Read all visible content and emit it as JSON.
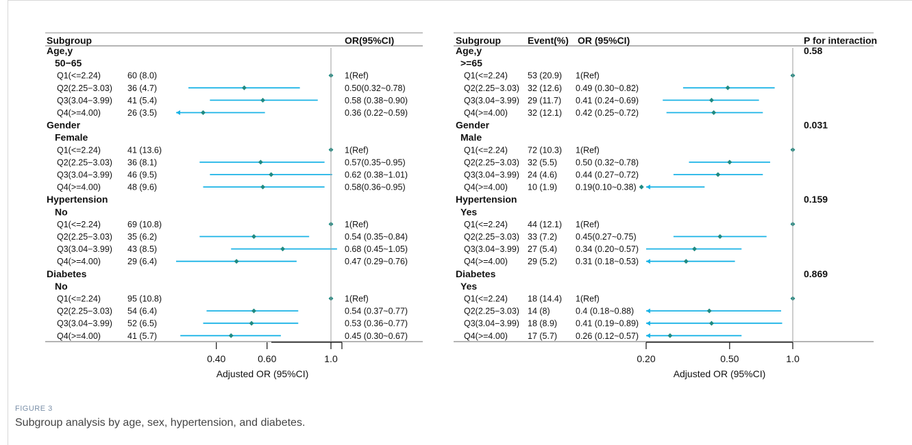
{
  "colors": {
    "ci_line": "#1ab3e6",
    "point": "#1f8a82",
    "ref_line": "#9e9e9e",
    "rule": "#888888"
  },
  "caption": {
    "label": "FIGURE 3",
    "text": "Subgroup analysis by age, sex, hypertension, and diabetes."
  },
  "chart_data": [
    {
      "type": "forest",
      "columns": [
        "Subgroup",
        "",
        "OR(95%CI)"
      ],
      "xlabel": "Adjusted OR (95%CI)",
      "xticks": [
        0.4,
        0.6,
        1.0
      ],
      "xtick_labels": [
        "0.40",
        "0.60",
        "1.0"
      ],
      "xlim": [
        0.29,
        1.12
      ],
      "reference": 1.0,
      "groups": [
        {
          "name": "Age,y",
          "level": "50−65",
          "rows": [
            {
              "quartile": "Q1(<=2.24)",
              "event": "60 (8.0)",
              "or_text": "1(Ref)",
              "or": 1.0,
              "lo": null,
              "hi": null
            },
            {
              "quartile": "Q2(2.25−3.03)",
              "event": "36 (4.7)",
              "or_text": "0.50(0.32~0.78)",
              "or": 0.5,
              "lo": 0.32,
              "hi": 0.78
            },
            {
              "quartile": "Q3(3.04−3.99)",
              "event": "41 (5.4)",
              "or_text": "0.58 (0.38~0.90)",
              "or": 0.58,
              "lo": 0.38,
              "hi": 0.9
            },
            {
              "quartile": "Q4(>=4.00)",
              "event": "26 (3.5)",
              "or_text": "0.36 (0.22~0.59)",
              "or": 0.36,
              "lo": 0.22,
              "hi": 0.59
            }
          ]
        },
        {
          "name": "Gender",
          "level": "Female",
          "rows": [
            {
              "quartile": "Q1(<=2.24)",
              "event": "41 (13.6)",
              "or_text": "1(Ref)",
              "or": 1.0,
              "lo": null,
              "hi": null
            },
            {
              "quartile": "Q2(2.25−3.03)",
              "event": "36 (8.1)",
              "or_text": "0.57(0.35~0.95)",
              "or": 0.57,
              "lo": 0.35,
              "hi": 0.95
            },
            {
              "quartile": "Q3(3.04−3.99)",
              "event": "46 (9.5)",
              "or_text": "0.62 (0.38~1.01)",
              "or": 0.62,
              "lo": 0.38,
              "hi": 1.01
            },
            {
              "quartile": "Q4(>=4.00)",
              "event": "48 (9.6)",
              "or_text": "0.58(0.36~0.95)",
              "or": 0.58,
              "lo": 0.36,
              "hi": 0.95
            }
          ]
        },
        {
          "name": "Hypertension",
          "level": "No",
          "rows": [
            {
              "quartile": "Q1(<=2.24)",
              "event": "69 (10.8)",
              "or_text": "1(Ref)",
              "or": 1.0,
              "lo": null,
              "hi": null
            },
            {
              "quartile": "Q2(2.25−3.03)",
              "event": "35 (6.2)",
              "or_text": "0.54 (0.35~0.84)",
              "or": 0.54,
              "lo": 0.35,
              "hi": 0.84
            },
            {
              "quartile": "Q3(3.04−3.99)",
              "event": "43 (8.5)",
              "or_text": "0.68 (0.45~1.05)",
              "or": 0.68,
              "lo": 0.45,
              "hi": 1.05
            },
            {
              "quartile": "Q4(>=4.00)",
              "event": "29 (6.4)",
              "or_text": "0.47 (0.29~0.76)",
              "or": 0.47,
              "lo": 0.29,
              "hi": 0.76
            }
          ]
        },
        {
          "name": "Diabetes",
          "level": "No",
          "rows": [
            {
              "quartile": "Q1(<=2.24)",
              "event": "95 (10.8)",
              "or_text": "1(Ref)",
              "or": 1.0,
              "lo": null,
              "hi": null
            },
            {
              "quartile": "Q2(2.25−3.03)",
              "event": "54 (6.4)",
              "or_text": "0.54 (0.37~0.77)",
              "or": 0.54,
              "lo": 0.37,
              "hi": 0.77
            },
            {
              "quartile": "Q3(3.04−3.99)",
              "event": "52 (6.5)",
              "or_text": "0.53 (0.36~0.77)",
              "or": 0.53,
              "lo": 0.36,
              "hi": 0.77
            },
            {
              "quartile": "Q4(>=4.00)",
              "event": "41 (5.7)",
              "or_text": "0.45 (0.30~0.67)",
              "or": 0.45,
              "lo": 0.3,
              "hi": 0.67
            }
          ]
        }
      ]
    },
    {
      "type": "forest",
      "columns": [
        "Subgroup",
        "Event(%)",
        "OR (95%CI)",
        "P for interaction"
      ],
      "xlabel": "Adjusted OR (95%CI)",
      "xticks": [
        0.2,
        0.5,
        1.0
      ],
      "xtick_labels": [
        "0.20",
        "0.50",
        "1.0"
      ],
      "xlim": [
        0.2,
        1.0
      ],
      "reference": 1.0,
      "groups": [
        {
          "name": "Age,y",
          "level": ">=65",
          "p_interaction": "0.58",
          "rows": [
            {
              "quartile": "Q1(<=2.24)",
              "event": "53 (20.9)",
              "or_text": "1(Ref)",
              "or": 1.0,
              "lo": null,
              "hi": null
            },
            {
              "quartile": "Q2(2.25−3.03)",
              "event": "32 (12.6)",
              "or_text": "0.49 (0.30~0.82)",
              "or": 0.49,
              "lo": 0.3,
              "hi": 0.82
            },
            {
              "quartile": "Q3(3.04−3.99)",
              "event": "29 (11.7)",
              "or_text": "0.41 (0.24~0.69)",
              "or": 0.41,
              "lo": 0.24,
              "hi": 0.69
            },
            {
              "quartile": "Q4(>=4.00)",
              "event": "32 (12.1)",
              "or_text": "0.42 (0.25~0.72)",
              "or": 0.42,
              "lo": 0.25,
              "hi": 0.72
            }
          ]
        },
        {
          "name": "Gender",
          "level": "Male",
          "p_interaction": "0.031",
          "rows": [
            {
              "quartile": "Q1(<=2.24)",
              "event": "72 (10.3)",
              "or_text": "1(Ref)",
              "or": 1.0,
              "lo": null,
              "hi": null
            },
            {
              "quartile": "Q2(2.25−3.03)",
              "event": "32 (5.5)",
              "or_text": "0.50 (0.32~0.78)",
              "or": 0.5,
              "lo": 0.32,
              "hi": 0.78
            },
            {
              "quartile": "Q3(3.04−3.99)",
              "event": "24 (4.6)",
              "or_text": "0.44 (0.27~0.72)",
              "or": 0.44,
              "lo": 0.27,
              "hi": 0.72
            },
            {
              "quartile": "Q4(>=4.00)",
              "event": "10 (1.9)",
              "or_text": "0.19(0.10~0.38)",
              "or": 0.19,
              "lo": 0.1,
              "hi": 0.38
            }
          ]
        },
        {
          "name": "Hypertension",
          "level": "Yes",
          "p_interaction": "0.159",
          "rows": [
            {
              "quartile": "Q1(<=2.24)",
              "event": "44 (12.1)",
              "or_text": "1(Ref)",
              "or": 1.0,
              "lo": null,
              "hi": null
            },
            {
              "quartile": "Q2(2.25−3.03)",
              "event": "33 (7.2)",
              "or_text": "0.45(0.27~0.75)",
              "or": 0.45,
              "lo": 0.27,
              "hi": 0.75
            },
            {
              "quartile": "Q3(3.04−3.99)",
              "event": "27 (5.4)",
              "or_text": "0.34 (0.20~0.57)",
              "or": 0.34,
              "lo": 0.2,
              "hi": 0.57
            },
            {
              "quartile": "Q4(>=4.00)",
              "event": "29 (5.2)",
              "or_text": "0.31 (0.18~0.53)",
              "or": 0.31,
              "lo": 0.18,
              "hi": 0.53
            }
          ]
        },
        {
          "name": "Diabetes",
          "level": "Yes",
          "p_interaction": "0.869",
          "rows": [
            {
              "quartile": "Q1(<=2.24)",
              "event": "18 (14.4)",
              "or_text": "1(Ref)",
              "or": 1.0,
              "lo": null,
              "hi": null
            },
            {
              "quartile": "Q2(2.25−3.03)",
              "event": "14 (8)",
              "or_text": "0.4 (0.18~0.88)",
              "or": 0.4,
              "lo": 0.18,
              "hi": 0.88
            },
            {
              "quartile": "Q3(3.04−3.99)",
              "event": "18 (8.9)",
              "or_text": "0.41 (0.19~0.89)",
              "or": 0.41,
              "lo": 0.19,
              "hi": 0.89
            },
            {
              "quartile": "Q4(>=4.00)",
              "event": "17 (5.7)",
              "or_text": "0.26 (0.12~0.57)",
              "or": 0.26,
              "lo": 0.12,
              "hi": 0.57
            }
          ]
        }
      ]
    }
  ]
}
